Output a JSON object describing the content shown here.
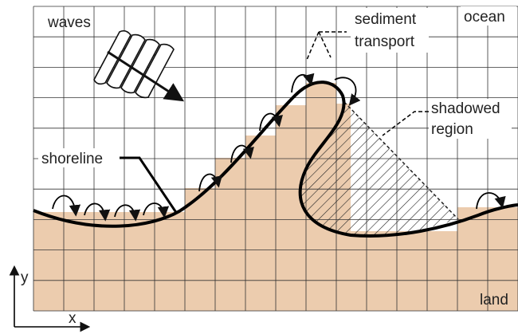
{
  "labels": {
    "waves": "waves",
    "ocean": "ocean",
    "sediment_transport": [
      "sediment",
      "transport"
    ],
    "shadowed_region": [
      "shadowed",
      "region"
    ],
    "shoreline": "shoreline",
    "land": "land",
    "y_axis": "y",
    "x_axis": "x"
  }
}
